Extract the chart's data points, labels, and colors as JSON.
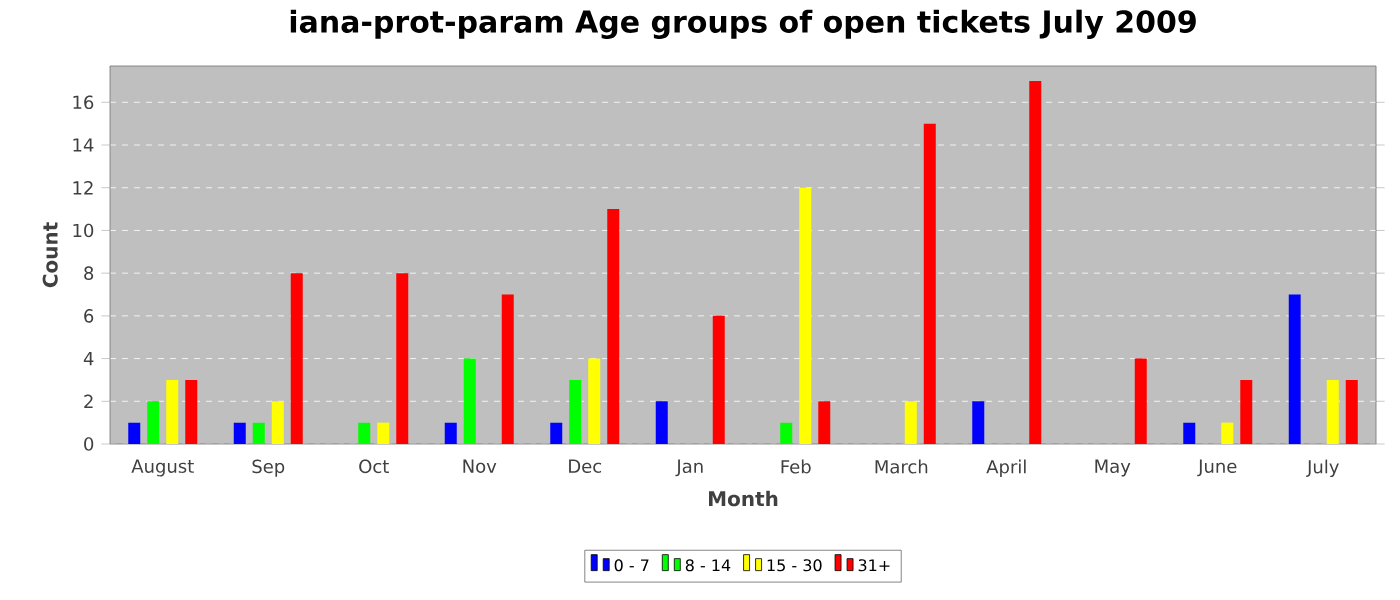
{
  "chart_data": {
    "type": "bar",
    "title": "iana-prot-param Age groups of open tickets July 2009",
    "xlabel": "Month",
    "ylabel": "Count",
    "categories": [
      "August",
      "Sep",
      "Oct",
      "Nov",
      "Dec",
      "Jan",
      "Feb",
      "March",
      "April",
      "May",
      "June",
      "July"
    ],
    "series": [
      {
        "name": "0 - 7",
        "color": "#0000ff",
        "values": [
          1,
          1,
          0,
          1,
          1,
          2,
          0,
          0,
          2,
          0,
          1,
          7
        ]
      },
      {
        "name": "8 - 14",
        "color": "#00ff00",
        "values": [
          2,
          1,
          1,
          4,
          3,
          0,
          1,
          0,
          0,
          0,
          0,
          0
        ]
      },
      {
        "name": "15 - 30",
        "color": "#ffff00",
        "values": [
          3,
          2,
          1,
          0,
          4,
          0,
          12,
          2,
          0,
          0,
          1,
          3
        ]
      },
      {
        "name": "31+",
        "color": "#ff0000",
        "values": [
          3,
          8,
          8,
          7,
          11,
          6,
          2,
          15,
          17,
          4,
          3,
          3
        ]
      }
    ],
    "ylim": [
      0,
      17.7
    ],
    "yticks": [
      0,
      2,
      4,
      6,
      8,
      10,
      12,
      14,
      16
    ],
    "grid": "y",
    "legend": "bottom"
  }
}
